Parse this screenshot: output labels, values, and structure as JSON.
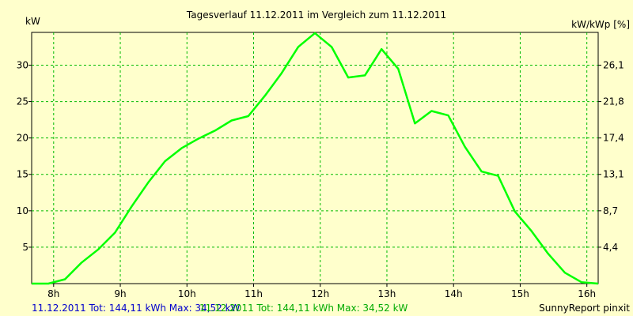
{
  "chart_data": {
    "type": "line",
    "title": "Tagesverlauf 11.12.2011 im Vergleich zum 11.12.2011",
    "ylabel_left": "kW",
    "ylabel_right": "kW/kWp [%]",
    "x_ticks": [
      "8h",
      "9h",
      "10h",
      "11h",
      "12h",
      "13h",
      "14h",
      "15h",
      "16h"
    ],
    "xlim": [
      7.67,
      16.17
    ],
    "y_ticks_left": [
      "5",
      "10",
      "15",
      "20",
      "25",
      "30"
    ],
    "y_ticks_right": [
      "4,4",
      "8,7",
      "13,1",
      "17,4",
      "21,8",
      "26,1"
    ],
    "ylim": [
      0,
      34.5
    ],
    "grid": true,
    "series": [
      {
        "color": "#00ff00",
        "x": [
          7.67,
          7.92,
          8.17,
          8.42,
          8.67,
          8.92,
          9.17,
          9.42,
          9.67,
          9.92,
          10.17,
          10.42,
          10.67,
          10.92,
          11.17,
          11.42,
          11.67,
          11.92,
          12.17,
          12.42,
          12.67,
          12.92,
          13.17,
          13.42,
          13.67,
          13.92,
          14.17,
          14.42,
          14.67,
          14.92,
          15.17,
          15.42,
          15.67,
          15.92,
          16.17
        ],
        "y": [
          0,
          0,
          0.6,
          2.9,
          4.7,
          7.0,
          10.6,
          13.9,
          16.8,
          18.6,
          19.9,
          21.0,
          22.4,
          23.0,
          25.8,
          28.9,
          32.5,
          34.4,
          32.5,
          28.3,
          28.6,
          32.2,
          29.5,
          22.0,
          23.7,
          23.1,
          18.8,
          15.4,
          14.8,
          9.9,
          7.2,
          4.1,
          1.5,
          0.2,
          0
        ]
      }
    ],
    "footer_blue": "11.12.2011 Tot: 144,11 kWh Max: 34,52 kW",
    "footer_green": "11.12.2011 Tot: 144,11 kWh Max: 34,52 kW",
    "footer_right": "SunnyReport pinxit"
  }
}
